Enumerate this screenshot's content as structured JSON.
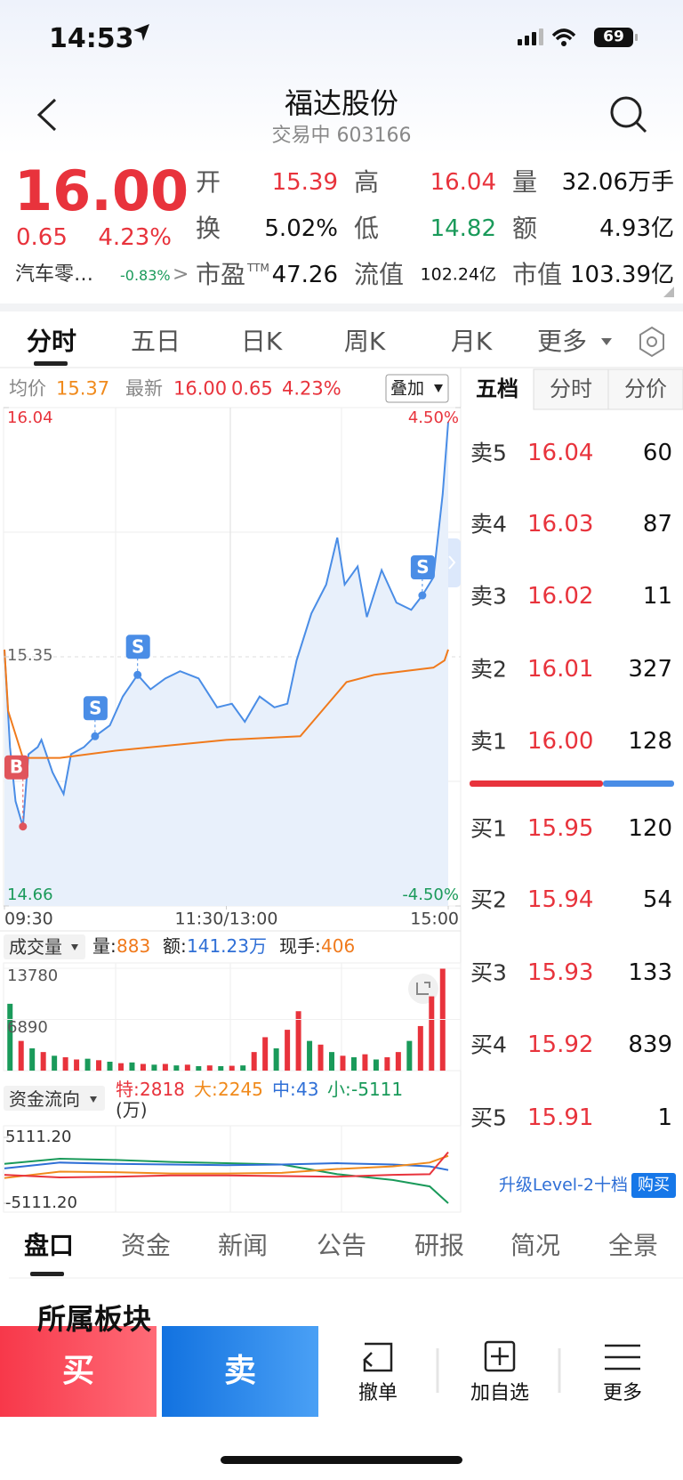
{
  "status_bar": {
    "time": "14:53",
    "battery": "69"
  },
  "header": {
    "title": "福达股份",
    "subtitle": "交易中 603166"
  },
  "quote": {
    "price": "16.00",
    "change": "0.65",
    "change_pct": "4.23%",
    "sector": "汽车零…",
    "sector_change": "-0.83%",
    "stats": [
      {
        "label": "开",
        "value": "15.39",
        "color": "#e8333c"
      },
      {
        "label": "高",
        "value": "16.04",
        "color": "#e8333c"
      },
      {
        "label": "量",
        "value": "32.06万手",
        "color": "#111111"
      },
      {
        "label": "换",
        "value": "5.02%",
        "color": "#111111"
      },
      {
        "label": "低",
        "value": "14.82",
        "color": "#1a9a5a"
      },
      {
        "label": "额",
        "value": "4.93亿",
        "color": "#111111"
      },
      {
        "label": "市盈",
        "sup": "TTM",
        "value": "47.26",
        "color": "#111111"
      },
      {
        "label": "流值",
        "value": "102.24亿",
        "color": "#111111"
      },
      {
        "label": "市值",
        "value": "103.39亿",
        "color": "#111111"
      }
    ]
  },
  "tabs": [
    "分时",
    "五日",
    "日K",
    "周K",
    "月K",
    "更多"
  ],
  "intraday": {
    "avg_label": "均价",
    "avg": "15.37",
    "latest_label": "最新",
    "latest": "16.00",
    "change": "0.65",
    "change_pct": "4.23%",
    "overlay": "叠加",
    "ylim": [
      14.66,
      16.04
    ],
    "yticks": [
      14.66,
      15.35,
      16.04
    ],
    "pct_ticks": [
      {
        "value": -4.5,
        "label": "-4.50%"
      },
      {
        "value": 4.5,
        "label": "4.50%"
      }
    ],
    "xlim": [
      0,
      240
    ],
    "xticks": [
      {
        "value": 0,
        "label": "09:30"
      },
      {
        "value": 120,
        "label": "11:30/13:00"
      },
      {
        "value": 240,
        "label": "15:00"
      }
    ],
    "x": [
      0,
      3,
      6,
      10,
      13,
      18,
      20,
      26,
      32,
      36,
      43,
      49,
      57,
      64,
      72,
      79,
      87,
      95,
      105,
      115,
      123,
      130,
      138,
      146,
      153,
      158,
      166,
      174,
      180,
      184,
      191,
      196,
      204,
      212,
      220,
      226,
      232,
      237,
      240
    ],
    "price": [
      15.37,
      15.1,
      14.95,
      14.88,
      15.08,
      15.1,
      15.12,
      15.03,
      14.97,
      15.08,
      15.1,
      15.13,
      15.16,
      15.24,
      15.3,
      15.26,
      15.29,
      15.31,
      15.29,
      15.21,
      15.22,
      15.17,
      15.24,
      15.21,
      15.22,
      15.34,
      15.47,
      15.55,
      15.68,
      15.55,
      15.6,
      15.46,
      15.59,
      15.5,
      15.48,
      15.52,
      15.57,
      15.8,
      16.0
    ],
    "avg_x": [
      0,
      2,
      10,
      30,
      60,
      120,
      160,
      175,
      185,
      200,
      232,
      238,
      240
    ],
    "avg_values": [
      15.37,
      15.2,
      15.07,
      15.07,
      15.09,
      15.12,
      15.13,
      15.22,
      15.28,
      15.3,
      15.32,
      15.34,
      15.37
    ],
    "markers": [
      {
        "label": "B",
        "x": 10,
        "price": 14.88,
        "color": "#e0555b"
      },
      {
        "label": "S",
        "x": 49,
        "price": 15.13,
        "color": "#4a8de6"
      },
      {
        "label": "S",
        "x": 72,
        "price": 15.3,
        "color": "#4a8de6"
      },
      {
        "label": "S",
        "x": 226,
        "price": 15.52,
        "color": "#4a8de6"
      }
    ]
  },
  "volume": {
    "label": "成交量",
    "stats": [
      {
        "label": "量:",
        "value": "883"
      },
      {
        "label": "额:",
        "value": "141.23万"
      },
      {
        "label": "现手:",
        "value": "406"
      }
    ],
    "ylim": [
      0,
      13780
    ],
    "yticks": [
      6890,
      13780
    ],
    "values": [
      9000,
      4000,
      3000,
      2500,
      2000,
      1800,
      1500,
      1600,
      1400,
      1200,
      1000,
      1100,
      900,
      800,
      900,
      700,
      800,
      600,
      700,
      600,
      650,
      700,
      2500,
      4500,
      3000,
      5500,
      8000,
      4000,
      3500,
      2500,
      2000,
      1800,
      2200,
      1500,
      1800,
      2500,
      4000,
      6000,
      10000,
      13780
    ],
    "colors": [
      "#1a9a5a",
      "#e8333c",
      "#1a9a5a",
      "#e8333c",
      "#1a9a5a",
      "#e8333c",
      "#e8333c",
      "#1a9a5a",
      "#e8333c",
      "#1a9a5a",
      "#e8333c",
      "#1a9a5a",
      "#e8333c",
      "#1a9a5a",
      "#e8333c",
      "#1a9a5a",
      "#e8333c",
      "#1a9a5a",
      "#e8333c",
      "#1a9a5a",
      "#e8333c",
      "#1a9a5a",
      "#e8333c",
      "#e8333c",
      "#1a9a5a",
      "#e8333c",
      "#e8333c",
      "#1a9a5a",
      "#e8333c",
      "#1a9a5a",
      "#e8333c",
      "#1a9a5a",
      "#e8333c",
      "#1a9a5a",
      "#e8333c",
      "#e8333c",
      "#1a9a5a",
      "#e8333c",
      "#e8333c",
      "#e8333c"
    ]
  },
  "fund_flow": {
    "label": "资金流向",
    "stats": [
      {
        "label": "特:",
        "value": "2818",
        "color": "#e8333c"
      },
      {
        "label": "大:",
        "value": "2245",
        "color": "#f08a1c"
      },
      {
        "label": "中:",
        "value": "43",
        "color": "#2f6fd6"
      },
      {
        "label": "小:",
        "value": "-5111",
        "color": "#1a9a5a"
      }
    ],
    "unit": "(万)",
    "ylim": [
      -5111.2,
      5111.2
    ],
    "yticks": [
      {
        "value": -5111.2,
        "label": "-5111.20"
      },
      {
        "value": 5111.2,
        "label": "5111.20"
      }
    ],
    "x": [
      0,
      30,
      60,
      90,
      120,
      150,
      180,
      210,
      230,
      240
    ],
    "series": [
      {
        "color": "#1a9a5a",
        "values": [
          1000,
          1800,
          1600,
          1300,
          1100,
          900,
          -600,
          -1500,
          -2500,
          -5111
        ]
      },
      {
        "color": "#2f6fd6",
        "values": [
          300,
          1200,
          1000,
          900,
          800,
          900,
          1100,
          900,
          600,
          43
        ]
      },
      {
        "color": "#f08a1c",
        "values": [
          -1200,
          -200,
          -300,
          -500,
          -500,
          -400,
          200,
          600,
          1200,
          2245
        ]
      },
      {
        "color": "#e8333c",
        "values": [
          -700,
          -1100,
          -1000,
          -800,
          -800,
          -900,
          -1000,
          -700,
          -600,
          2818
        ]
      }
    ]
  },
  "order_book": {
    "tabs": [
      "五档",
      "分时",
      "分价"
    ],
    "asks": [
      {
        "label": "卖5",
        "price": "16.04",
        "qty": "60"
      },
      {
        "label": "卖4",
        "price": "16.03",
        "qty": "87"
      },
      {
        "label": "卖3",
        "price": "16.02",
        "qty": "11"
      },
      {
        "label": "卖2",
        "price": "16.01",
        "qty": "327"
      },
      {
        "label": "卖1",
        "price": "16.00",
        "qty": "128"
      }
    ],
    "bids": [
      {
        "label": "买1",
        "price": "15.95",
        "qty": "120"
      },
      {
        "label": "买2",
        "price": "15.94",
        "qty": "54"
      },
      {
        "label": "买3",
        "price": "15.93",
        "qty": "133"
      },
      {
        "label": "买4",
        "price": "15.92",
        "qty": "839"
      },
      {
        "label": "买5",
        "price": "15.91",
        "qty": "1"
      }
    ],
    "level2": "升级Level-2十档",
    "buy_button": "购买"
  },
  "bottom_tabs": [
    "盘口",
    "资金",
    "新闻",
    "公告",
    "研报",
    "简况",
    "全景"
  ],
  "section_title": "所属板块",
  "action_bar": {
    "buy": "买",
    "sell": "卖",
    "items": [
      "撤单",
      "加自选",
      "更多"
    ]
  }
}
